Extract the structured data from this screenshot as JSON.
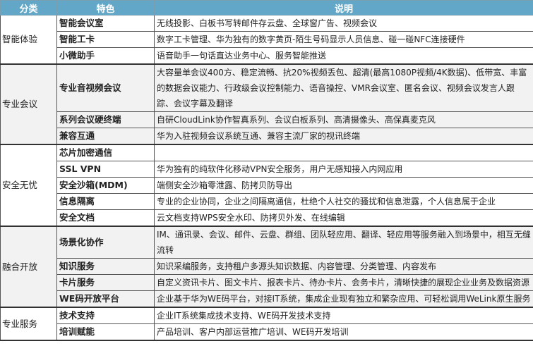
{
  "headers": [
    "分类",
    "特色",
    "说明"
  ],
  "groups": [
    {
      "category": "智能体验",
      "gray": false,
      "items": [
        {
          "feature": "智能会议室",
          "desc": "无线投影、白板书写转邮件存云盘、全球窗广告、视频会议"
        },
        {
          "feature": "智能工卡",
          "desc": "数字工卡管理、华为独有的数字黄页-陌生号码显示人员信息、碰一碰NFC连接硬件"
        },
        {
          "feature": "小微助手",
          "desc": "语音助手一句话直达业务中心、服务智能推送"
        }
      ]
    },
    {
      "category": "专业会议",
      "gray": true,
      "items": [
        {
          "feature": "专业音视频会议",
          "desc": "大容量单会议400方、稳定流畅、抗20%视频丢包、超清(最高1080P视频/4K数据)、低带宽、丰富的数据会议能力、行政级会议控制能力、语音操控、VMR会议室、匿名会议、视频会议发言人跟踪、会议字幕及翻译"
        },
        {
          "feature": "系列会议硬终端",
          "desc": "自研CloudLink协作智真系列、会议白板系列、高清摄像头、高保真麦克风"
        },
        {
          "feature": "兼容互通",
          "desc": "华为入驻视频会议系统互通、兼容主流厂家的视讯终端"
        }
      ]
    },
    {
      "category": "安全无忧",
      "gray": false,
      "items": [
        {
          "feature": "芯片加密通信",
          "desc": ""
        },
        {
          "feature": "SSL VPN",
          "desc": "华为独有的纯软件化移动VPN安全服务，用户无感知接入内网应用"
        },
        {
          "feature": "安全沙箱(MDM)",
          "desc": "端侧安全沙箱零泄露、防拷贝防导出"
        },
        {
          "feature": "信息隔离",
          "desc": "专业的企业协同，企业之间隔离通信，杜绝个人社交的骚扰和信息泄露，个人信息属于企业"
        },
        {
          "feature": "安全文档",
          "desc": "云文档支持WPS安全水印、防拷贝外发、在线编辑"
        }
      ]
    },
    {
      "category": "融合开放",
      "gray": true,
      "items": [
        {
          "feature": "场景化协作",
          "desc": "IM、通讯录、会议、邮件、云盘、群组、团队轻应用、翻译、轻应用等服务融入到场景中，相互无缝流转"
        },
        {
          "feature": "知识服务",
          "desc": "知识采编服务，支持租户多源头知识数据、内容管理、分类管理、内容发布"
        },
        {
          "feature": "卡片服务",
          "desc": "自定义资讯卡片、图文卡片、报表卡片、待办卡片、会务卡片，清晰快捷的展现企业业务及数据资源"
        },
        {
          "feature": "WE码开放平台",
          "desc": "企业基于华为WE码平台，对接IT系统，集成企业现有独立和繁杂应用、可轻松调用WeLink原生服务"
        }
      ]
    },
    {
      "category": "专业服务",
      "gray": false,
      "items": [
        {
          "feature": "技术支持",
          "desc": "企业IT系统集成技术支持、WE码开发技术支持"
        },
        {
          "feature": "培训赋能",
          "desc": "产品培训、客户内部运营推广培训、WE码开发培训"
        }
      ]
    }
  ]
}
